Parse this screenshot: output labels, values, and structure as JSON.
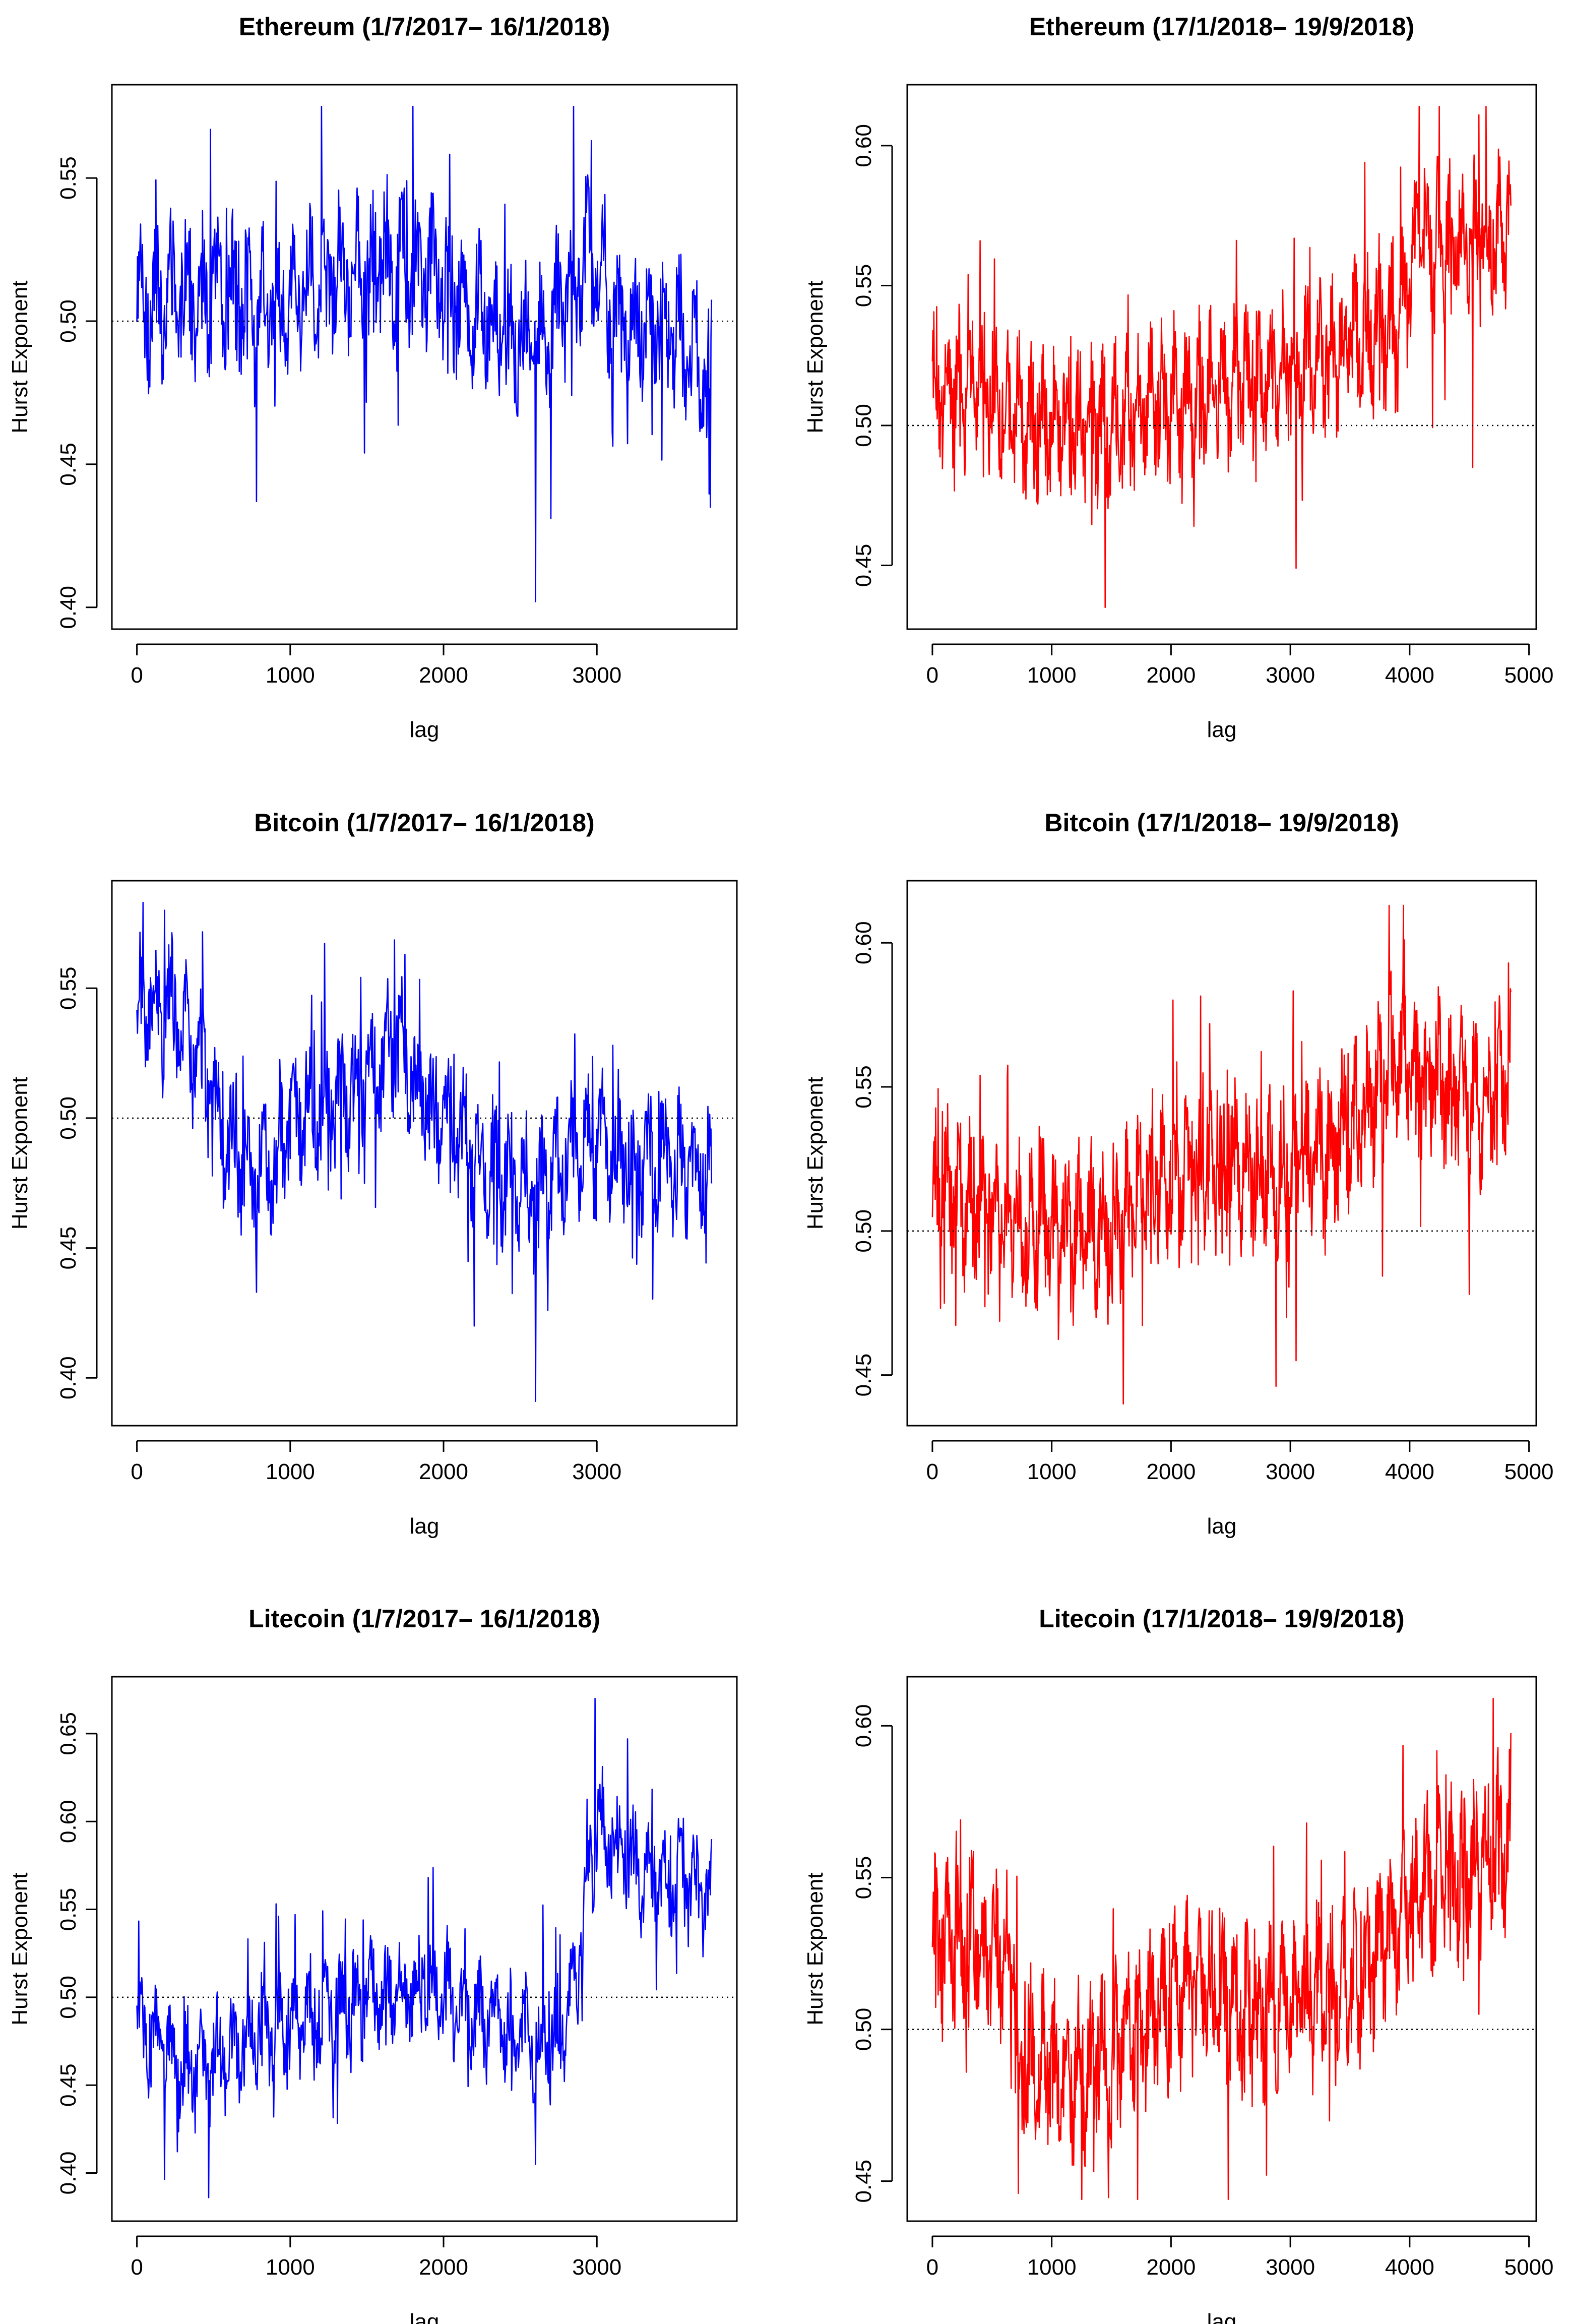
{
  "figure": {
    "description": "Rolling Hurst exponent by lag for three cryptocurrencies in two periods"
  },
  "chart_data": [
    {
      "type": "line",
      "title": "Ethereum (1/7/2017– 16/1/2018)",
      "xlabel": "lag",
      "ylabel": "Hurst Exponent",
      "xlim": [
        0,
        3750
      ],
      "ylim": [
        0.4,
        0.575
      ],
      "xticks": [
        0,
        1000,
        2000,
        3000
      ],
      "xtick_labels": [
        "0",
        "1000",
        "2000",
        "3000"
      ],
      "yticks": [
        0.4,
        0.45,
        0.5,
        0.55
      ],
      "ytick_labels": [
        "0.40",
        "0.45",
        "0.50",
        "0.55"
      ],
      "reference_line": 0.5,
      "color": "#0000ff",
      "series": {
        "name": "Ethereum 2017",
        "n": 3750,
        "min": 0.402,
        "max": 0.575,
        "trend": [
          [
            0,
            0.505
          ],
          [
            500,
            0.51
          ],
          [
            800,
            0.505
          ],
          [
            1200,
            0.515
          ],
          [
            1600,
            0.522
          ],
          [
            1900,
            0.518
          ],
          [
            2200,
            0.505
          ],
          [
            2600,
            0.49
          ],
          [
            2950,
            0.525
          ],
          [
            3100,
            0.5
          ],
          [
            3500,
            0.495
          ],
          [
            3750,
            0.48
          ]
        ],
        "amplitude": 0.025,
        "extremes": [
          [
            480,
            0.567
          ],
          [
            780,
            0.437
          ],
          [
            1800,
            0.575
          ],
          [
            2600,
            0.402
          ],
          [
            2700,
            0.431
          ],
          [
            3740,
            0.435
          ]
        ]
      }
    },
    {
      "type": "line",
      "title": "Ethereum (17/1/2018– 19/9/2018)",
      "xlabel": "lag",
      "ylabel": "Hurst Exponent",
      "xlim": [
        0,
        4850
      ],
      "ylim": [
        0.435,
        0.614
      ],
      "xticks": [
        0,
        1000,
        2000,
        3000,
        4000,
        5000
      ],
      "xtick_labels": [
        "0",
        "1000",
        "2000",
        "3000",
        "4000",
        "5000"
      ],
      "yticks": [
        0.45,
        0.5,
        0.55,
        0.6
      ],
      "ytick_labels": [
        "0.45",
        "0.50",
        "0.55",
        "0.60"
      ],
      "reference_line": 0.5,
      "color": "#ff0000",
      "series": {
        "name": "Ethereum 2018",
        "n": 4850,
        "min": 0.435,
        "max": 0.614,
        "trend": [
          [
            0,
            0.51
          ],
          [
            400,
            0.515
          ],
          [
            800,
            0.5
          ],
          [
            1500,
            0.5
          ],
          [
            2000,
            0.51
          ],
          [
            2500,
            0.515
          ],
          [
            3000,
            0.52
          ],
          [
            3500,
            0.53
          ],
          [
            3900,
            0.535
          ],
          [
            4100,
            0.57
          ],
          [
            4500,
            0.565
          ],
          [
            4850,
            0.57
          ]
        ],
        "amplitude": 0.025,
        "extremes": [
          [
            400,
            0.566
          ],
          [
            1450,
            0.435
          ],
          [
            3050,
            0.449
          ],
          [
            4080,
            0.614
          ],
          [
            4580,
            0.611
          ],
          [
            4530,
            0.485
          ]
        ]
      }
    },
    {
      "type": "line",
      "title": "Bitcoin (1/7/2017– 16/1/2018)",
      "xlabel": "lag",
      "ylabel": "Hurst Exponent",
      "xlim": [
        0,
        3750
      ],
      "ylim": [
        0.39,
        0.583
      ],
      "xticks": [
        0,
        1000,
        2000,
        3000
      ],
      "xtick_labels": [
        "0",
        "1000",
        "2000",
        "3000"
      ],
      "yticks": [
        0.4,
        0.45,
        0.5,
        0.55
      ],
      "ytick_labels": [
        "0.40",
        "0.45",
        "0.50",
        "0.55"
      ],
      "reference_line": 0.5,
      "color": "#0000ff",
      "series": {
        "name": "Bitcoin 2017",
        "n": 3750,
        "min": 0.391,
        "max": 0.583,
        "trend": [
          [
            0,
            0.54
          ],
          [
            200,
            0.545
          ],
          [
            400,
            0.52
          ],
          [
            600,
            0.49
          ],
          [
            800,
            0.475
          ],
          [
            1000,
            0.5
          ],
          [
            1400,
            0.51
          ],
          [
            1700,
            0.53
          ],
          [
            1900,
            0.505
          ],
          [
            2200,
            0.485
          ],
          [
            2600,
            0.47
          ],
          [
            2900,
            0.49
          ],
          [
            3300,
            0.485
          ],
          [
            3750,
            0.48
          ]
        ],
        "amplitude": 0.025,
        "extremes": [
          [
            40,
            0.583
          ],
          [
            180,
            0.58
          ],
          [
            780,
            0.433
          ],
          [
            1750,
            0.563
          ],
          [
            2200,
            0.42
          ],
          [
            2600,
            0.391
          ],
          [
            2680,
            0.426
          ]
        ]
      }
    },
    {
      "type": "line",
      "title": "Bitcoin (17/1/2018– 19/9/2018)",
      "xlabel": "lag",
      "ylabel": "Hurst Exponent",
      "xlim": [
        0,
        4850
      ],
      "ylim": [
        0.44,
        0.614
      ],
      "xticks": [
        0,
        1000,
        2000,
        3000,
        4000,
        5000
      ],
      "xtick_labels": [
        "0",
        "1000",
        "2000",
        "3000",
        "4000",
        "5000"
      ],
      "yticks": [
        0.45,
        0.5,
        0.55,
        0.6
      ],
      "ytick_labels": [
        "0.45",
        "0.50",
        "0.55",
        "0.60"
      ],
      "reference_line": 0.5,
      "color": "#ff0000",
      "series": {
        "name": "Bitcoin 2018",
        "n": 4850,
        "min": 0.44,
        "max": 0.613,
        "trend": [
          [
            0,
            0.515
          ],
          [
            400,
            0.51
          ],
          [
            800,
            0.5
          ],
          [
            1500,
            0.5
          ],
          [
            1800,
            0.52
          ],
          [
            2400,
            0.52
          ],
          [
            3000,
            0.52
          ],
          [
            3500,
            0.535
          ],
          [
            3900,
            0.56
          ],
          [
            4300,
            0.55
          ],
          [
            4600,
            0.545
          ],
          [
            4850,
            0.555
          ]
        ],
        "amplitude": 0.026,
        "extremes": [
          [
            400,
            0.554
          ],
          [
            1600,
            0.44
          ],
          [
            3050,
            0.455
          ],
          [
            3950,
            0.613
          ],
          [
            4500,
            0.478
          ],
          [
            4830,
            0.593
          ]
        ]
      }
    },
    {
      "type": "line",
      "title": "Litecoin (1/7/2017– 16/1/2018)",
      "xlabel": "lag",
      "ylabel": "Hurst Exponent",
      "xlim": [
        0,
        3750
      ],
      "ylim": [
        0.385,
        0.67
      ],
      "xticks": [
        0,
        1000,
        2000,
        3000
      ],
      "xtick_labels": [
        "0",
        "1000",
        "2000",
        "3000"
      ],
      "yticks": [
        0.4,
        0.45,
        0.5,
        0.55,
        0.6,
        0.65
      ],
      "ytick_labels": [
        "0.40",
        "0.45",
        "0.50",
        "0.55",
        "0.60",
        "0.65"
      ],
      "reference_line": 0.5,
      "color": "#0000ff",
      "series": {
        "name": "Litecoin 2017",
        "n": 3750,
        "min": 0.386,
        "max": 0.67,
        "trend": [
          [
            0,
            0.485
          ],
          [
            300,
            0.455
          ],
          [
            600,
            0.47
          ],
          [
            1000,
            0.485
          ],
          [
            1500,
            0.5
          ],
          [
            1900,
            0.505
          ],
          [
            2300,
            0.485
          ],
          [
            2700,
            0.47
          ],
          [
            2850,
            0.5
          ],
          [
            3000,
            0.6
          ],
          [
            3300,
            0.57
          ],
          [
            3750,
            0.56
          ]
        ],
        "amplitude": 0.03,
        "extremes": [
          [
            470,
            0.386
          ],
          [
            2600,
            0.405
          ],
          [
            2990,
            0.67
          ],
          [
            3200,
            0.647
          ],
          [
            3750,
            0.59
          ]
        ]
      }
    },
    {
      "type": "line",
      "title": "Litecoin (17/1/2018– 19/9/2018)",
      "xlabel": "lag",
      "ylabel": "Hurst Exponent",
      "xlim": [
        0,
        4850
      ],
      "ylim": [
        0.444,
        0.609
      ],
      "xticks": [
        0,
        1000,
        2000,
        3000,
        4000,
        5000
      ],
      "xtick_labels": [
        "0",
        "1000",
        "2000",
        "3000",
        "4000",
        "5000"
      ],
      "yticks": [
        0.45,
        0.5,
        0.55,
        0.6
      ],
      "ytick_labels": [
        "0.45",
        "0.50",
        "0.55",
        "0.60"
      ],
      "reference_line": 0.5,
      "color": "#ff0000",
      "series": {
        "name": "Litecoin 2018",
        "n": 4850,
        "min": 0.444,
        "max": 0.609,
        "trend": [
          [
            0,
            0.53
          ],
          [
            650,
            0.525
          ],
          [
            720,
            0.49
          ],
          [
            1200,
            0.485
          ],
          [
            1700,
            0.5
          ],
          [
            2200,
            0.515
          ],
          [
            2700,
            0.505
          ],
          [
            3200,
            0.51
          ],
          [
            3700,
            0.52
          ],
          [
            4000,
            0.545
          ],
          [
            4500,
            0.55
          ],
          [
            4850,
            0.565
          ]
        ],
        "amplitude": 0.026,
        "extremes": [
          [
            720,
            0.446
          ],
          [
            1720,
            0.444
          ],
          [
            2800,
            0.452
          ],
          [
            4700,
            0.609
          ],
          [
            4580,
            0.505
          ]
        ]
      }
    }
  ]
}
